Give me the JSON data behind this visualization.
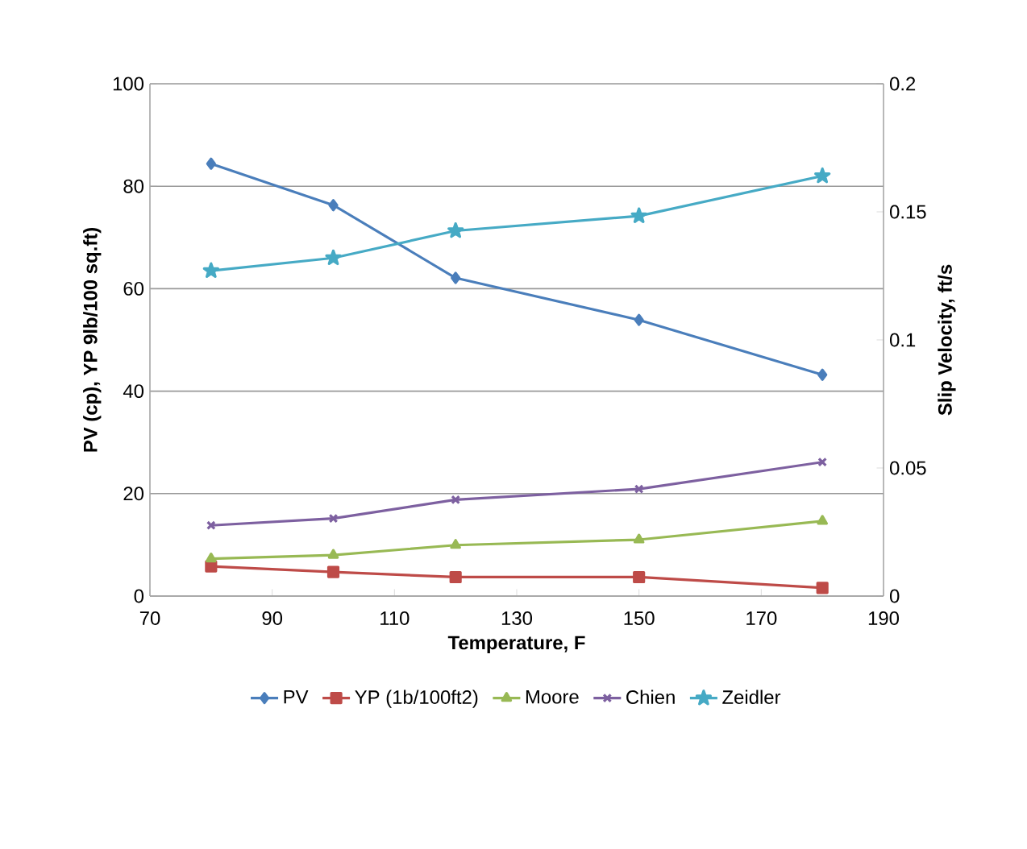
{
  "chart_data": {
    "type": "line",
    "xlabel": "Temperature, F",
    "ylabel": "PV (cp), YP 9lb/100 sq.ft)",
    "y2label": "Slip Velocity, ft/s",
    "x": [
      80,
      100,
      120,
      150,
      180
    ],
    "xlim": [
      70,
      190
    ],
    "xticks": [
      70,
      90,
      110,
      130,
      150,
      170,
      190
    ],
    "ylim": [
      0,
      100
    ],
    "yticks": [
      0,
      20,
      40,
      60,
      80,
      100
    ],
    "y2lim": [
      0,
      0.2
    ],
    "y2ticks": [
      0,
      0.05,
      0.1,
      0.15,
      0.2
    ],
    "grid": "y",
    "legend": "bottom",
    "line_style": "solid",
    "series": [
      {
        "name": "PV",
        "color": "#4a7ebb",
        "marker": "diamond",
        "values": [
          84.4,
          76.3,
          62.1,
          53.9,
          43.2
        ]
      },
      {
        "name": "YP (1b/100ft2)",
        "color": "#be4b48",
        "marker": "square",
        "values": [
          5.8,
          4.7,
          3.7,
          3.7,
          1.6
        ]
      },
      {
        "name": "Moore",
        "color": "#98b954",
        "marker": "triangle",
        "axis": "y2",
        "values": [
          0.0146,
          0.016,
          0.0199,
          0.022,
          0.0293
        ]
      },
      {
        "name": "Chien",
        "color": "#7d60a0",
        "marker": "cross",
        "axis": "y2",
        "values": [
          0.0276,
          0.0303,
          0.0376,
          0.0418,
          0.0523
        ]
      },
      {
        "name": "Zeidler",
        "color": "#46aac5",
        "marker": "star",
        "axis": "y2",
        "values": [
          0.127,
          0.132,
          0.1426,
          0.1484,
          0.164
        ]
      }
    ]
  }
}
